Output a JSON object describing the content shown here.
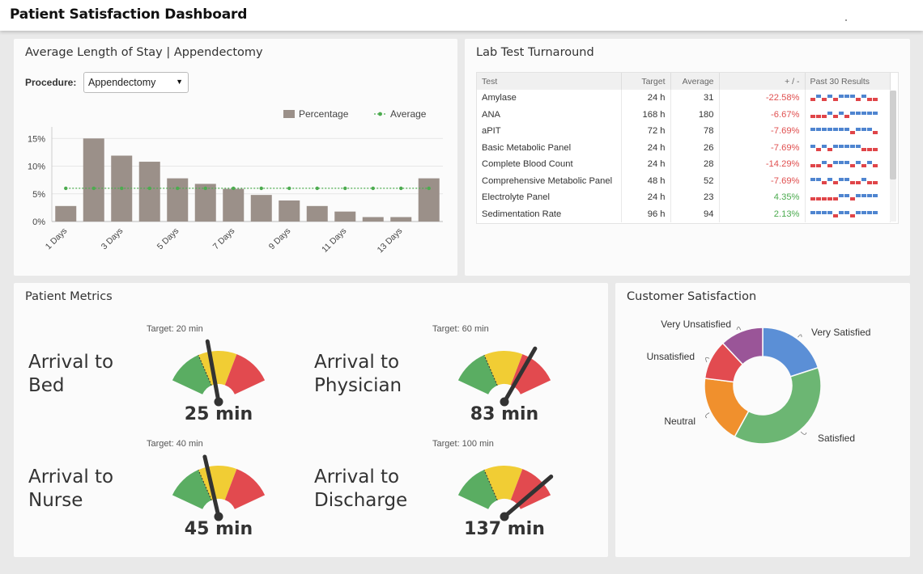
{
  "header": {
    "title": "Patient Satisfaction Dashboard"
  },
  "length_of_stay": {
    "title": "Average Length of Stay | Appendectomy",
    "procedure_label": "Procedure:",
    "procedure_value": "Appendectomy",
    "legend": {
      "percentage": "Percentage",
      "average": "Average"
    },
    "chart_data": {
      "type": "bar",
      "categories": [
        "1 Days",
        "2 Days",
        "3 Days",
        "4 Days",
        "5 Days",
        "6 Days",
        "7 Days",
        "8 Days",
        "9 Days",
        "10 Days",
        "11 Days",
        "12 Days",
        "13 Days",
        "14 Days"
      ],
      "tick_labels": [
        "1 Days",
        "3 Days",
        "5 Days",
        "7 Days",
        "9 Days",
        "11 Days",
        "13 Days"
      ],
      "series": [
        {
          "name": "Percentage",
          "type": "bar",
          "color": "#9b9089",
          "values": [
            2.8,
            15,
            11.9,
            10.8,
            7.8,
            6.8,
            5.9,
            4.8,
            3.8,
            2.8,
            1.8,
            0.8,
            0.8,
            7.8
          ]
        },
        {
          "name": "Average",
          "type": "line",
          "color": "#4cab4f",
          "values": [
            6,
            6,
            6,
            6,
            6,
            6,
            6,
            6,
            6,
            6,
            6,
            6,
            6,
            6
          ]
        }
      ],
      "y_ticks": [
        "0%",
        "5%",
        "10%",
        "15%"
      ],
      "ylim": [
        0,
        16.5
      ]
    }
  },
  "lab": {
    "title": "Lab Test Turnaround",
    "columns": [
      "Test",
      "Target",
      "Average",
      "+ / -",
      "Past 30 Results"
    ],
    "rows": [
      {
        "test": "Amylase",
        "target": "24 h",
        "average": "31",
        "diff": "-22.58%",
        "status": "neg",
        "spark": "rbrbrbbbrbrr"
      },
      {
        "test": "ANA",
        "target": "168 h",
        "average": "180",
        "diff": "-6.67%",
        "status": "neg",
        "spark": "rrrbrbrbbbbb"
      },
      {
        "test": "aPIT",
        "target": "72 h",
        "average": "78",
        "diff": "-7.69%",
        "status": "neg",
        "spark": "bbbbbbbrbbbr"
      },
      {
        "test": "Basic Metabolic Panel",
        "target": "24 h",
        "average": "26",
        "diff": "-7.69%",
        "status": "neg",
        "spark": "brbrbbbbbrrr"
      },
      {
        "test": "Complete Blood Count",
        "target": "24 h",
        "average": "28",
        "diff": "-14.29%",
        "status": "neg",
        "spark": "rrbrbbbrbrbr"
      },
      {
        "test": "Comprehensive Metabolic Panel",
        "target": "48 h",
        "average": "52",
        "diff": "-7.69%",
        "status": "neg",
        "spark": "bbrbrbbrrbrr"
      },
      {
        "test": "Electrolyte Panel",
        "target": "24 h",
        "average": "23",
        "diff": "4.35%",
        "status": "pos",
        "spark": "rrrrrbbrbbbb"
      },
      {
        "test": "Sedimentation Rate",
        "target": "96 h",
        "average": "94",
        "diff": "2.13%",
        "status": "pos",
        "spark": "bbbbrbbrbbbb"
      }
    ]
  },
  "metrics": {
    "title": "Patient Metrics",
    "items": [
      {
        "label": "Arrival to\nBed",
        "target": "Target: 20 min",
        "value": "25 min",
        "needle_fraction": 0.42
      },
      {
        "label": "Arrival to\nPhysician",
        "target": "Target: 60 min",
        "value": "83 min",
        "needle_fraction": 0.73
      },
      {
        "label": "Arrival to\nNurse",
        "target": "Target: 40 min",
        "value": "45 min",
        "needle_fraction": 0.4
      },
      {
        "label": "Arrival to\nDischarge",
        "target": "Target: 100 min",
        "value": "137 min",
        "needle_fraction": 0.88
      }
    ]
  },
  "satisfaction": {
    "title": "Customer Satisfaction",
    "chart_data": {
      "type": "pie",
      "labels": [
        "Very Satisfied",
        "Satisfied",
        "Neutral",
        "Unsatisfied",
        "Very Unsatisfied"
      ],
      "values": [
        20,
        38,
        19,
        11,
        12
      ],
      "colors": [
        "#5b8fd6",
        "#6cb673",
        "#f0902d",
        "#e24b50",
        "#9a5598"
      ]
    }
  }
}
